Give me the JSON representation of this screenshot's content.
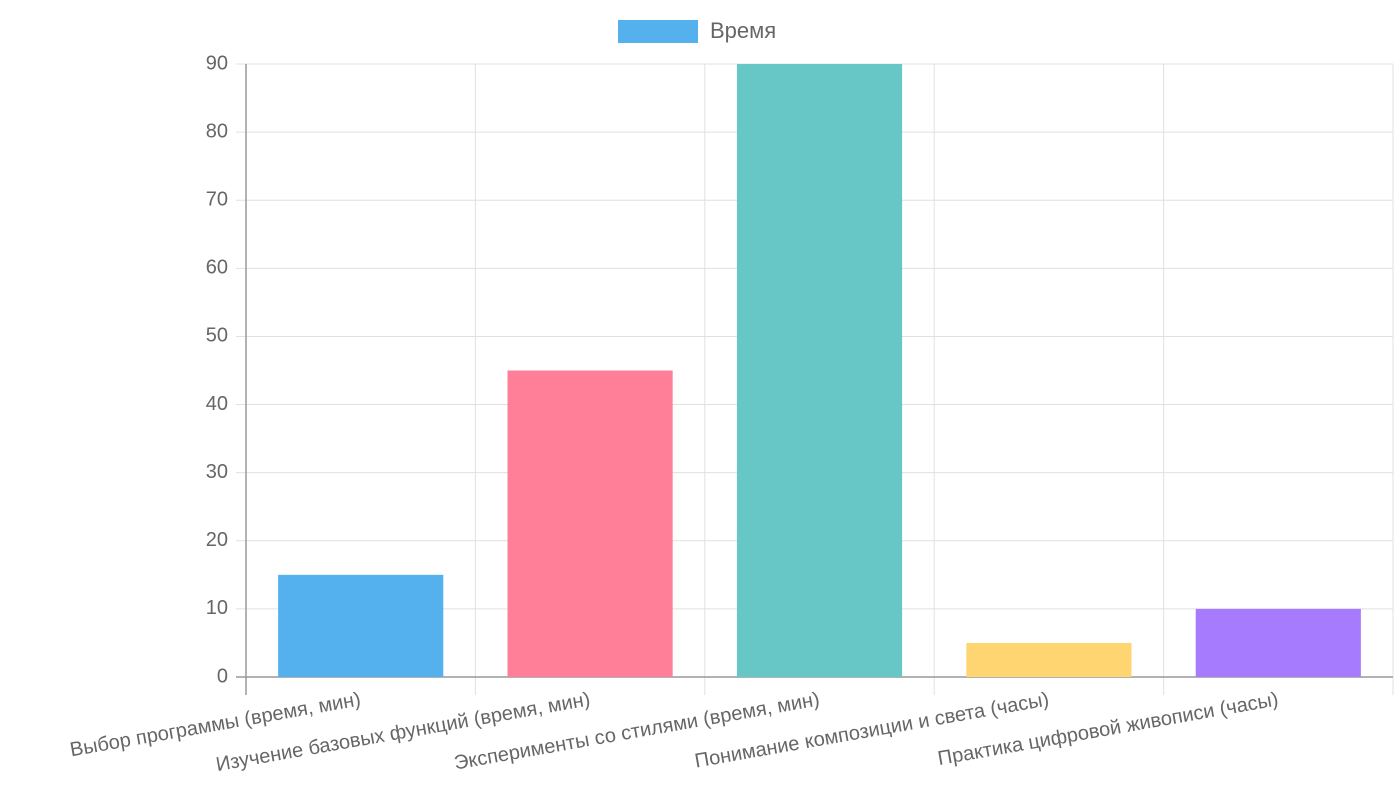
{
  "chart_data": {
    "type": "bar",
    "categories": [
      "Выбор программы (время, мин)",
      "Изучение базовых функций (время, мин)",
      "Эксперименты со стилями (время, мин)",
      "Понимание композиции и света (часы)",
      "Практика цифровой живописи (часы)"
    ],
    "series": [
      {
        "name": "Время",
        "color": "#55b0ee",
        "bar_colors": [
          "#55b0ee",
          "#ff7f98",
          "#67c7c7",
          "#ffd572",
          "#a77bfd"
        ],
        "values": [
          15,
          45,
          90,
          5,
          10
        ]
      }
    ],
    "ylim": [
      0,
      90
    ],
    "yticks": [
      0,
      10,
      20,
      30,
      40,
      50,
      60,
      70,
      80,
      90
    ],
    "grid": true,
    "legend": "top"
  }
}
